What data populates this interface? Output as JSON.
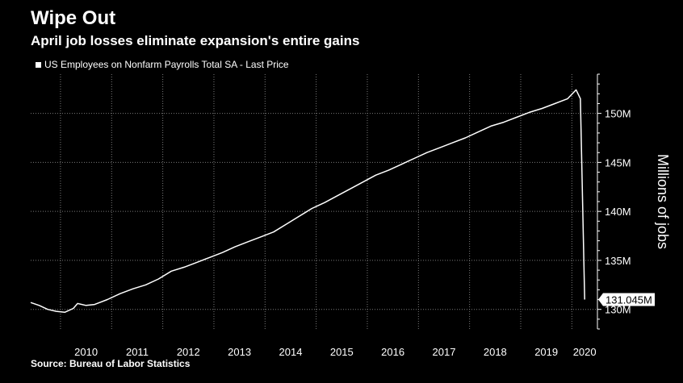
{
  "header": {
    "title": "Wipe Out",
    "subtitle": "April job losses eliminate expansion's entire gains"
  },
  "footer": {
    "source": "Source: Bureau of Labor Statistics"
  },
  "colors": {
    "background": "#000000",
    "line": "#ffffff",
    "grid": "#7a7a7a",
    "text": "#ffffff"
  },
  "chart_data": {
    "type": "line",
    "title": "Wipe Out",
    "subtitle": "April job losses eliminate expansion's entire gains",
    "ylabel": "Millions of jobs",
    "xlabel": "",
    "ylim": [
      128,
      154
    ],
    "xlim": [
      "2009-06",
      "2020-07"
    ],
    "y_ticks": [
      130,
      135,
      140,
      145,
      150
    ],
    "y_tick_labels": [
      "130M",
      "135M",
      "140M",
      "145M",
      "150M"
    ],
    "x_tick_labels": [
      "2010",
      "2011",
      "2012",
      "2013",
      "2014",
      "2015",
      "2016",
      "2017",
      "2018",
      "2019",
      "2020"
    ],
    "grid": true,
    "legend_position": "top-left",
    "last_value_label": "131.045M",
    "series": [
      {
        "name": "US Employees on Nonfarm Payrolls Total SA - Last Price",
        "x": [
          "2009-06",
          "2009-08",
          "2009-10",
          "2009-12",
          "2010-02",
          "2010-04",
          "2010-05",
          "2010-07",
          "2010-09",
          "2010-12",
          "2011-03",
          "2011-06",
          "2011-09",
          "2011-12",
          "2012-03",
          "2012-06",
          "2012-09",
          "2012-12",
          "2013-03",
          "2013-06",
          "2013-09",
          "2013-12",
          "2014-03",
          "2014-06",
          "2014-09",
          "2014-12",
          "2015-03",
          "2015-06",
          "2015-09",
          "2015-12",
          "2016-03",
          "2016-06",
          "2016-09",
          "2016-12",
          "2017-03",
          "2017-06",
          "2017-09",
          "2017-12",
          "2018-03",
          "2018-06",
          "2018-09",
          "2018-12",
          "2019-03",
          "2019-06",
          "2019-09",
          "2019-12",
          "2020-02",
          "2020-03",
          "2020-04"
        ],
        "values": [
          130.7,
          130.4,
          130.0,
          129.8,
          129.7,
          130.1,
          130.6,
          130.4,
          130.5,
          131.0,
          131.6,
          132.1,
          132.5,
          133.1,
          133.9,
          134.3,
          134.8,
          135.3,
          135.8,
          136.4,
          136.9,
          137.4,
          137.9,
          138.7,
          139.5,
          140.3,
          140.9,
          141.6,
          142.3,
          143.0,
          143.7,
          144.2,
          144.8,
          145.4,
          146.0,
          146.5,
          147.0,
          147.5,
          148.1,
          148.7,
          149.1,
          149.6,
          150.1,
          150.5,
          151.0,
          151.5,
          152.4,
          151.5,
          131.0
        ]
      }
    ]
  }
}
